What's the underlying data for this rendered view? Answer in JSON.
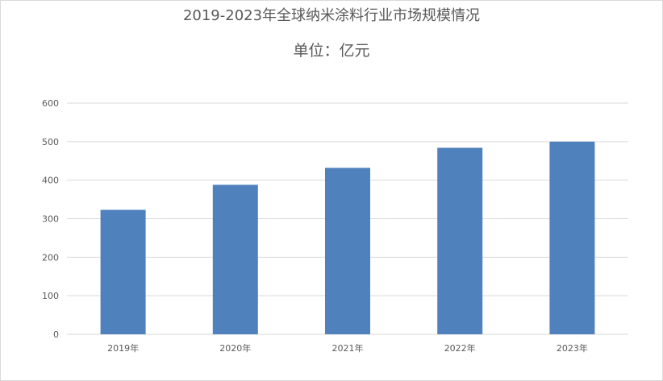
{
  "chart_data": {
    "type": "bar",
    "title": "2019-2023年全球纳米涂料行业市场规模情况",
    "subtitle": "单位：亿元",
    "categories": [
      "2019年",
      "2020年",
      "2021年",
      "2022年",
      "2023年"
    ],
    "values": [
      323,
      388,
      432,
      484,
      500
    ],
    "ylim": [
      0,
      600
    ],
    "yticks": [
      0,
      100,
      200,
      300,
      400,
      500,
      600
    ],
    "grid": true,
    "legend": "none",
    "bar_color": "#4f81bd",
    "grid_color": "#d9d9d9",
    "text_color": "#595959"
  }
}
